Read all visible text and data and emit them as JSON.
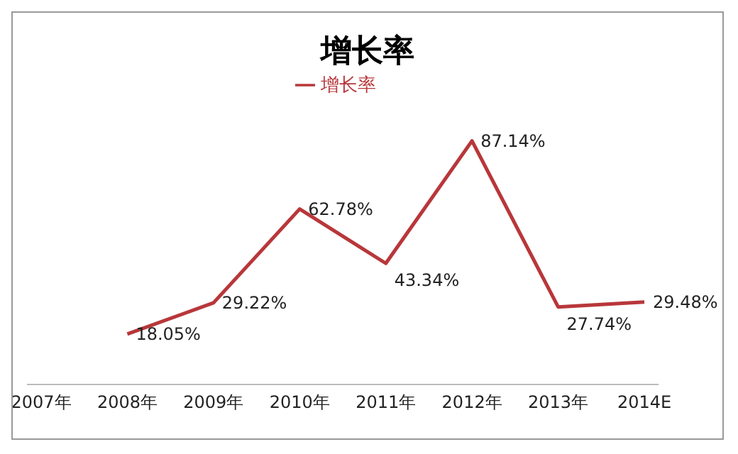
{
  "chart_data": {
    "type": "line",
    "title": "增长率",
    "categories": [
      "2007年",
      "2008年",
      "2009年",
      "2010年",
      "2011年",
      "2012年",
      "2013年",
      "2014E"
    ],
    "series": [
      {
        "name": "增长率",
        "color": "#b8373a",
        "values": [
          null,
          18.05,
          29.22,
          62.78,
          43.34,
          87.14,
          27.74,
          29.48
        ],
        "value_labels": [
          null,
          "18.05%",
          "29.22%",
          "62.78%",
          "43.34%",
          "87.14%",
          "27.74%",
          "29.48%"
        ]
      }
    ],
    "tick_labels": "x",
    "legend": "top",
    "grid": false,
    "marker": "none",
    "line_style": "solid"
  }
}
